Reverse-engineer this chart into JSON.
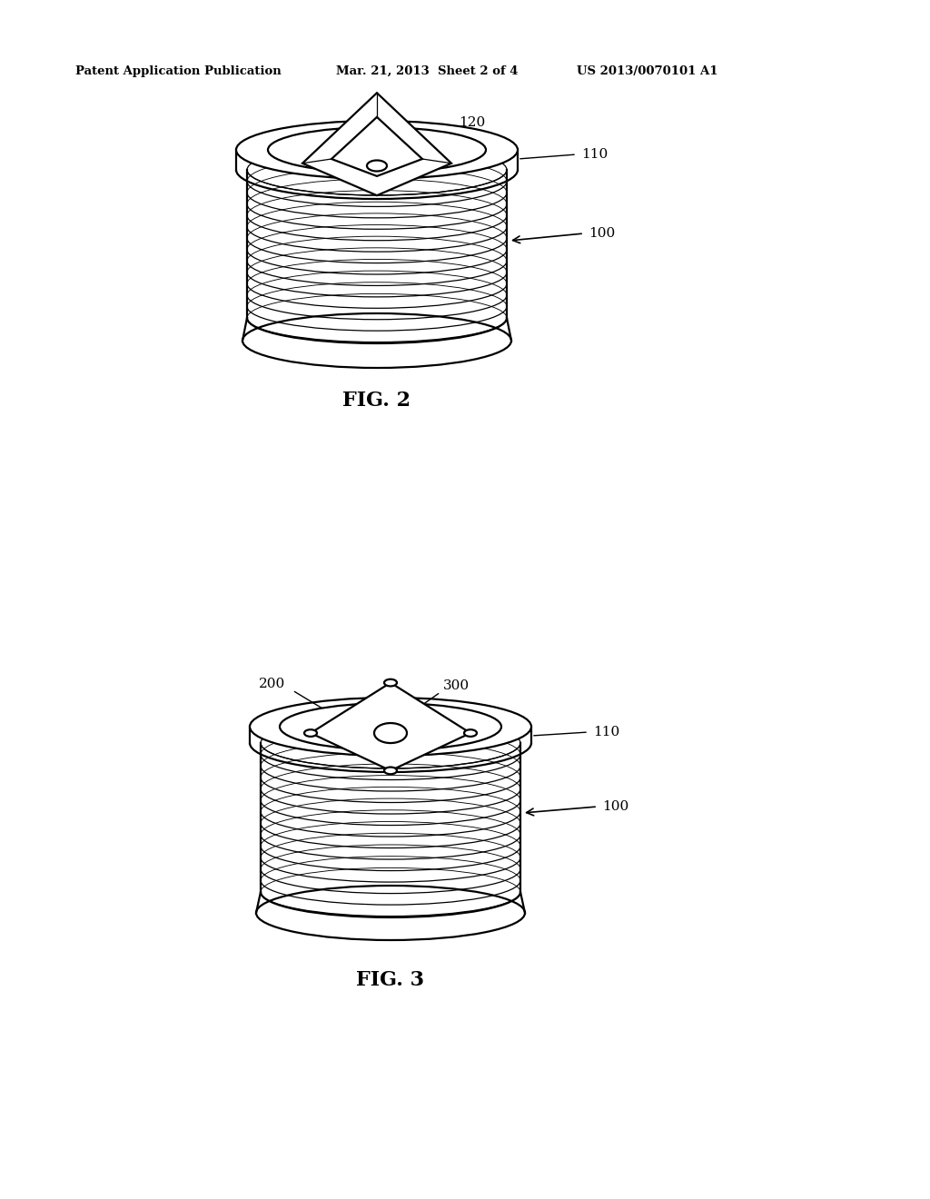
{
  "bg_color": "#ffffff",
  "header_left": "Patent Application Publication",
  "header_mid": "Mar. 21, 2013  Sheet 2 of 4",
  "header_right": "US 2013/0070101 A1",
  "fig2_label": "FIG. 2",
  "fig3_label": "FIG. 3",
  "label_120": "120",
  "label_110_fig2": "110",
  "label_100_fig2": "100",
  "label_200": "200",
  "label_300": "300",
  "label_110_fig3": "110",
  "label_100_fig3": "100",
  "line_color": "#000000",
  "lw_main": 1.6,
  "lw_thin": 0.9,
  "lw_thick": 2.0
}
